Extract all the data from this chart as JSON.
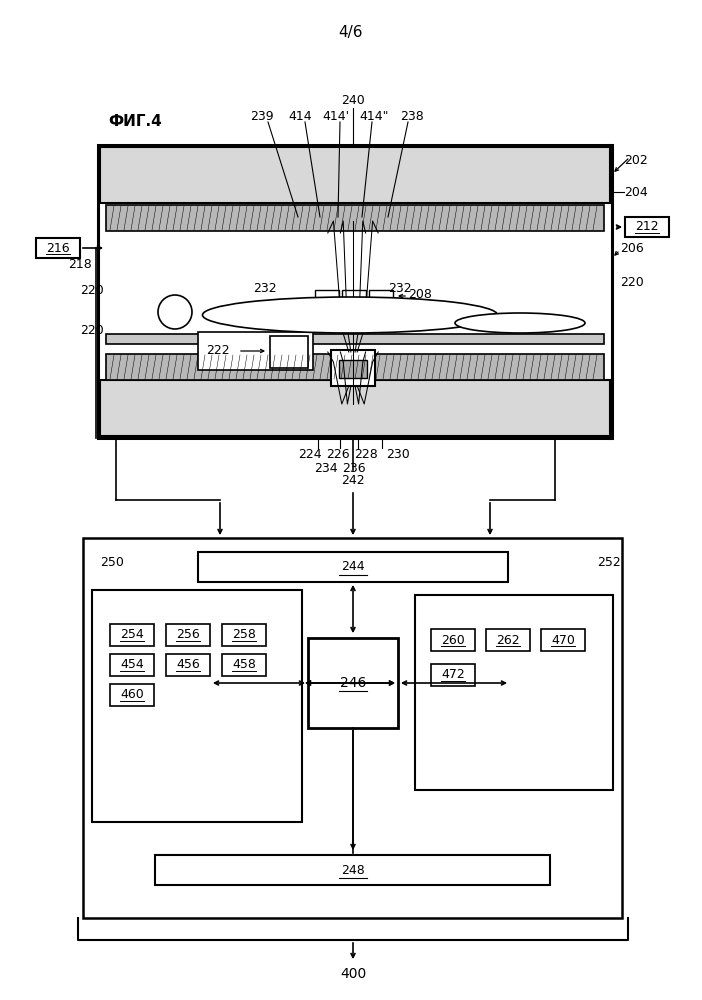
{
  "page_label": "4/6",
  "fig_label": "ФИГ.4",
  "bg_color": "#ffffff",
  "line_color": "#000000",
  "label_fontsize": 9,
  "title_fontsize": 11,
  "fig_label_fontsize": 11
}
